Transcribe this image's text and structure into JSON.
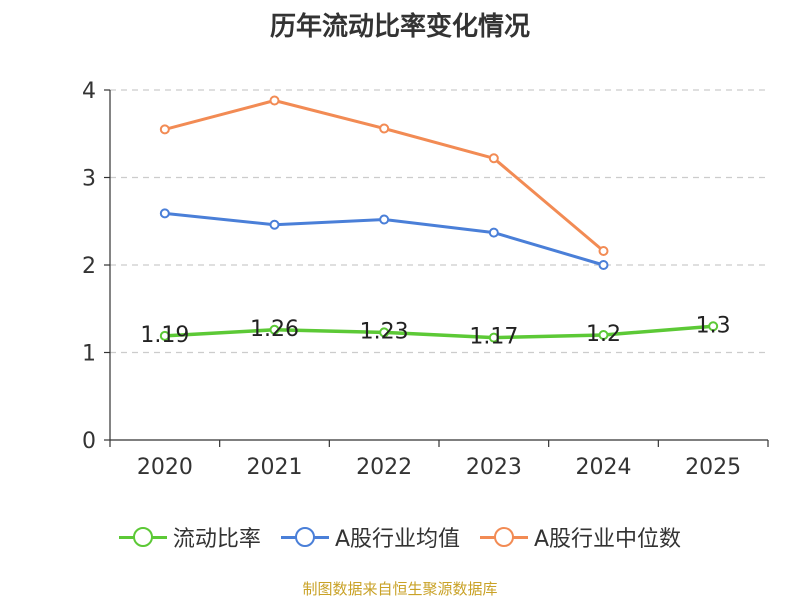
{
  "chart_data": {
    "type": "line",
    "title": "历年流动比率变化情况",
    "categories": [
      "2020",
      "2021",
      "2022",
      "2023",
      "2024",
      "2025"
    ],
    "ylim": [
      0,
      4
    ],
    "yticks": [
      0,
      1,
      2,
      3,
      4
    ],
    "grid": true,
    "legend_position": "bottom",
    "series": [
      {
        "name": "流动比率",
        "color": "#5cc936",
        "values": [
          1.19,
          1.26,
          1.23,
          1.17,
          1.2,
          1.3
        ],
        "labels": [
          "1.19",
          "1.26",
          "1.23",
          "1.17",
          "1.2",
          "1.3"
        ]
      },
      {
        "name": "A股行业均值",
        "color": "#4a7fd8",
        "values": [
          2.59,
          2.46,
          2.52,
          2.37,
          2.0,
          null
        ]
      },
      {
        "name": "A股行业中位数",
        "color": "#f28b54",
        "values": [
          3.55,
          3.88,
          3.56,
          3.22,
          2.16,
          null
        ]
      }
    ]
  },
  "source": "制图数据来自恒生聚源数据库"
}
